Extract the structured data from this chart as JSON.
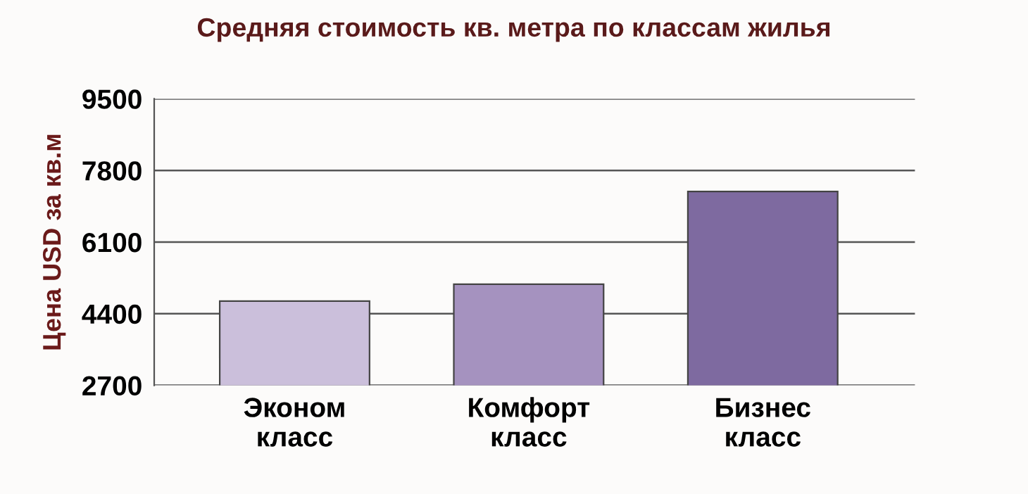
{
  "chart_data": {
    "type": "bar",
    "title": "Средняя стоимость кв. метра по классам жилья",
    "ylabel": "Цена USD за кв.м",
    "categories": [
      "Эконом\nкласс",
      "Комфорт\nкласс",
      "Бизнес\nкласс"
    ],
    "values": [
      4700,
      5100,
      7300
    ],
    "colors": [
      "#cbbfdb",
      "#a592bf",
      "#7e6aa0"
    ],
    "ylim": [
      2700,
      9500
    ],
    "yticks": [
      2700,
      4400,
      6100,
      7800,
      9500
    ],
    "grid": "y"
  }
}
